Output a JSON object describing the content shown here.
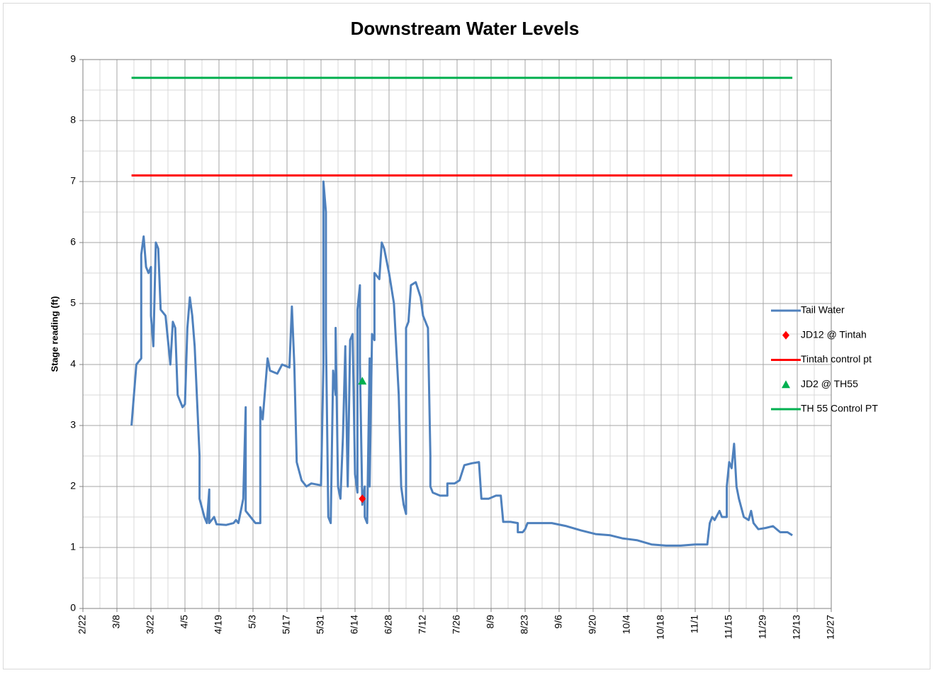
{
  "chart_data": {
    "type": "line",
    "title": "Downstream  Water Levels",
    "y_label": "Stage reading (ft)",
    "xlim": [
      "2/22",
      "12/27"
    ],
    "xticks": [
      "2/22",
      "3/8",
      "3/22",
      "4/5",
      "4/19",
      "5/3",
      "5/17",
      "5/31",
      "6/14",
      "6/28",
      "7/12",
      "7/26",
      "8/9",
      "8/23",
      "9/6",
      "9/20",
      "10/4",
      "10/18",
      "11/1",
      "11/15",
      "11/29",
      "12/13",
      "12/27"
    ],
    "xminorticks": [
      "3/1",
      "3/15",
      "3/29",
      "4/12",
      "4/26",
      "5/10",
      "5/24",
      "6/7",
      "6/21",
      "7/5",
      "7/19",
      "8/2",
      "8/16",
      "8/30",
      "9/13",
      "9/27",
      "10/11",
      "10/25",
      "11/8",
      "11/22",
      "12/6",
      "12/20"
    ],
    "ylim": [
      0,
      9
    ],
    "yticks": [
      0,
      1,
      2,
      3,
      4,
      5,
      6,
      7,
      8,
      9
    ],
    "yminorticks": [
      0.5,
      1.5,
      2.5,
      3.5,
      4.5,
      5.5,
      6.5,
      7.5,
      8.5
    ],
    "grid": true,
    "legend": "right",
    "series": [
      {
        "name": "Tail Water",
        "kind": "line",
        "color": "#4f81bd",
        "x": [
          "3/14",
          "3/15",
          "3/16",
          "3/18",
          "3/18",
          "3/19",
          "3/20",
          "3/21",
          "3/22",
          "3/22",
          "3/23",
          "3/24",
          "3/25",
          "3/26",
          "3/28",
          "3/29",
          "3/30",
          "3/31",
          "4/1",
          "4/2",
          "4/4",
          "4/5",
          "4/6",
          "4/7",
          "4/8",
          "4/9",
          "4/11",
          "4/11",
          "4/13",
          "4/14",
          "4/15",
          "4/15",
          "4/17",
          "4/18",
          "4/22",
          "4/25",
          "4/26",
          "4/27",
          "4/29",
          "4/30",
          "4/30",
          "5/2",
          "5/3",
          "5/4",
          "5/6",
          "5/6",
          "5/7",
          "5/9",
          "5/10",
          "5/13",
          "5/15",
          "5/18",
          "5/19",
          "5/20",
          "5/21",
          "5/23",
          "5/25",
          "5/27",
          "5/31",
          "6/1",
          "6/1",
          "6/2",
          "6/2",
          "6/3",
          "6/4",
          "6/5",
          "6/6",
          "6/6",
          "6/7",
          "6/8",
          "6/9",
          "6/10",
          "6/10",
          "6/11",
          "6/12",
          "6/13",
          "6/14",
          "6/15",
          "6/15",
          "6/16",
          "6/16",
          "6/17",
          "6/18",
          "6/18",
          "6/19",
          "6/20",
          "6/20",
          "6/21",
          "6/22",
          "6/22",
          "6/24",
          "6/25",
          "6/26",
          "6/28",
          "6/30",
          "7/2",
          "7/3",
          "7/4",
          "7/5",
          "7/5",
          "7/6",
          "7/7",
          "7/9",
          "7/11",
          "7/12",
          "7/14",
          "7/15",
          "7/15",
          "7/16",
          "7/19",
          "7/22",
          "7/22",
          "7/25",
          "7/27",
          "7/29",
          "8/1",
          "8/4",
          "8/5",
          "8/8",
          "8/11",
          "8/13",
          "8/14",
          "8/17",
          "8/20",
          "8/20",
          "8/22",
          "8/23",
          "8/24",
          "8/29",
          "9/3",
          "9/9",
          "9/15",
          "9/21",
          "9/27",
          "10/2",
          "10/8",
          "10/14",
          "10/20",
          "10/26",
          "11/1",
          "11/6",
          "11/7",
          "11/8",
          "11/9",
          "11/11",
          "11/12",
          "11/14",
          "11/14",
          "11/15",
          "11/16",
          "11/17",
          "11/18",
          "11/19",
          "11/21",
          "11/23",
          "11/24",
          "11/25",
          "11/27",
          "11/30",
          "12/3",
          "12/6",
          "12/9",
          "12/11"
        ],
        "values": [
          3.0,
          3.5,
          4.0,
          4.1,
          5.8,
          6.1,
          5.6,
          5.5,
          5.6,
          4.8,
          4.3,
          6.0,
          5.9,
          4.9,
          4.8,
          4.4,
          4.0,
          4.7,
          4.6,
          3.5,
          3.3,
          3.35,
          4.6,
          5.1,
          4.8,
          4.3,
          2.5,
          1.8,
          1.5,
          1.4,
          1.95,
          1.4,
          1.5,
          1.38,
          1.37,
          1.4,
          1.45,
          1.4,
          1.8,
          3.3,
          1.6,
          1.5,
          1.45,
          1.4,
          1.4,
          3.3,
          3.1,
          4.1,
          3.9,
          3.85,
          4.0,
          3.95,
          4.95,
          4.0,
          2.4,
          2.1,
          2.0,
          2.05,
          2.02,
          4.0,
          7.0,
          6.5,
          4.5,
          1.5,
          1.4,
          3.9,
          3.5,
          4.6,
          2.0,
          1.8,
          2.8,
          4.3,
          4.2,
          2.0,
          4.4,
          4.5,
          2.2,
          1.9,
          4.9,
          5.3,
          4.0,
          1.7,
          2.0,
          1.5,
          1.4,
          4.1,
          2.0,
          4.5,
          4.4,
          5.5,
          5.4,
          6.0,
          5.9,
          5.5,
          5.0,
          3.5,
          2.0,
          1.7,
          1.55,
          4.6,
          4.7,
          5.3,
          5.35,
          5.1,
          4.8,
          4.6,
          2.5,
          2.0,
          1.9,
          1.85,
          1.85,
          2.05,
          2.05,
          2.1,
          2.35,
          2.38,
          2.4,
          1.8,
          1.8,
          1.85,
          1.85,
          1.42,
          1.42,
          1.4,
          1.25,
          1.25,
          1.3,
          1.4,
          1.4,
          1.4,
          1.35,
          1.28,
          1.22,
          1.2,
          1.15,
          1.12,
          1.05,
          1.03,
          1.03,
          1.05,
          1.05,
          1.4,
          1.5,
          1.45,
          1.6,
          1.5,
          1.5,
          2.0,
          2.4,
          2.3,
          2.7,
          2.0,
          1.8,
          1.5,
          1.45,
          1.6,
          1.4,
          1.3,
          1.32,
          1.35,
          1.25,
          1.25,
          1.2
        ]
      },
      {
        "name": "JD12 @ Tintah",
        "kind": "scatter",
        "marker": "diamond",
        "color": "#ff0000",
        "x": [
          "6/17"
        ],
        "values": [
          1.8
        ]
      },
      {
        "name": "Tintah control pt",
        "kind": "line",
        "color": "#ff0000",
        "x": [
          "3/14",
          "12/11"
        ],
        "values": [
          7.1,
          7.1
        ]
      },
      {
        "name": "JD2 @ TH55",
        "kind": "scatter",
        "marker": "triangle",
        "color": "#00b050",
        "x": [
          "6/17"
        ],
        "values": [
          3.73
        ]
      },
      {
        "name": "TH 55 Control PT",
        "kind": "line",
        "color": "#00b050",
        "x": [
          "3/14",
          "12/11"
        ],
        "values": [
          8.7,
          8.7
        ]
      }
    ]
  }
}
